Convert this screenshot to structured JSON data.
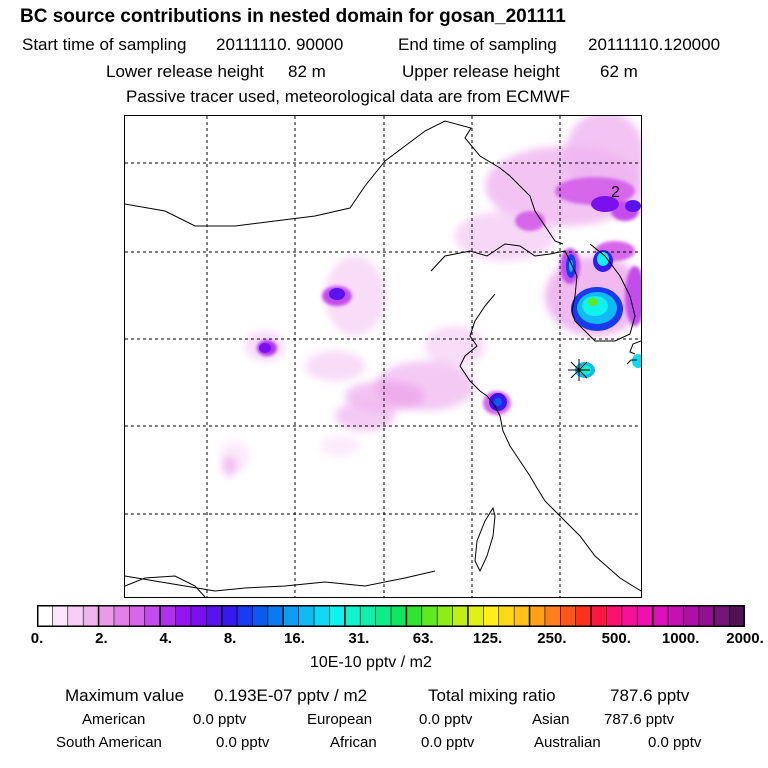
{
  "header": {
    "title": "BC  source contributions in nested domain for gosan_201111",
    "start_label": "Start time of sampling",
    "start_value": "20111110. 90000",
    "end_label": "End time of sampling",
    "end_value": "20111110.120000",
    "lower_label": "Lower release height",
    "lower_value": "82 m",
    "upper_label": "Upper release height",
    "upper_value": "62 m",
    "note": "Passive tracer used, meteorological data are from ECMWF"
  },
  "map": {
    "contour_label": "2",
    "receptor_marker": "gosan-receptor"
  },
  "colorbar": {
    "colors": [
      "#ffffff",
      "#fbe6fb",
      "#f5cdf5",
      "#efb4f0",
      "#e99bea",
      "#e07fe6",
      "#d666ea",
      "#c44cec",
      "#b030ee",
      "#9416ee",
      "#7a10ee",
      "#5a12ee",
      "#3818ee",
      "#1a3aee",
      "#0a5af0",
      "#0a7af2",
      "#109af4",
      "#10baf4",
      "#10d8f2",
      "#10f2ee",
      "#10f2cc",
      "#10eeaa",
      "#10ea88",
      "#10e460",
      "#30e430",
      "#60e820",
      "#90ec18",
      "#c0ee18",
      "#e0f018",
      "#fff018",
      "#ffd818",
      "#ffc018",
      "#ffa018",
      "#ff8018",
      "#ff5818",
      "#ff3020",
      "#ff1840",
      "#ff1070",
      "#f81098",
      "#ee10b0",
      "#dc10b8",
      "#c610b0",
      "#ac10a4",
      "#901090",
      "#741478",
      "#501450"
    ],
    "major_every": 4,
    "ticks": [
      "0.",
      "2.",
      "4.",
      "8.",
      "16.",
      "31.",
      "63.",
      "125.",
      "250.",
      "500.",
      "1000.",
      "2000."
    ],
    "units": "10E-10 pptv / m2"
  },
  "summary": {
    "max_label": "Maximum value",
    "max_value": "0.193E-07 pptv / m2",
    "total_label": "Total mixing ratio",
    "total_value": "787.6 pptv",
    "regions": [
      {
        "name": "American",
        "value": "0.0 pptv"
      },
      {
        "name": "European",
        "value": "0.0 pptv"
      },
      {
        "name": "Asian",
        "value": "787.6 pptv"
      },
      {
        "name": "South American",
        "value": "0.0 pptv"
      },
      {
        "name": "African",
        "value": "0.0 pptv"
      },
      {
        "name": "Australian",
        "value": "0.0 pptv"
      }
    ]
  }
}
